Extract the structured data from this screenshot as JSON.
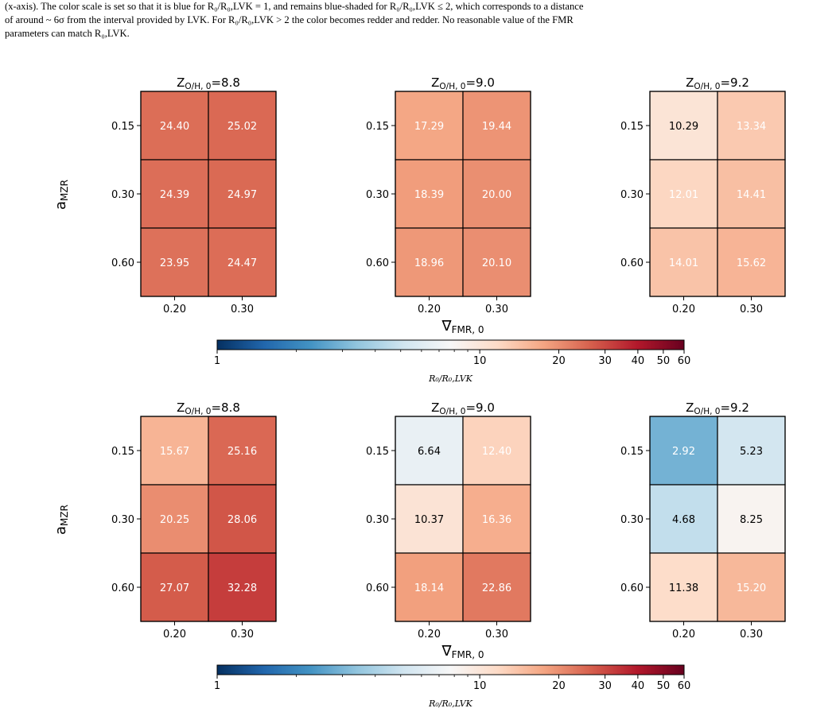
{
  "caption": {
    "line1": "(x-axis). The color scale is set so that it is blue for R₀/R₀,LVK = 1, and remains blue-shaded for R₀/R₀,LVK ≤ 2, which corresponds to a distance",
    "line2": "of around ~ 6σ from the interval provided by LVK. For R₀/R₀,LVK > 2 the color becomes redder and redder. No reasonable value of the FMR",
    "line3": "parameters can match R₀,LVK."
  },
  "chart_data": [
    {
      "type": "heatmap",
      "panel": "top",
      "x_categories": [
        "0.20",
        "0.30"
      ],
      "y_categories": [
        "0.15",
        "0.30",
        "0.60"
      ],
      "ylabel": "a_MZR",
      "xlabel": "∇_FMR,0",
      "subplots": [
        {
          "title": "Z_O/H,0=8.8",
          "title_base": "Z",
          "title_sub": "O/H, 0",
          "title_val": "=8.8",
          "values": [
            [
              "24.40",
              "25.02"
            ],
            [
              "24.39",
              "24.97"
            ],
            [
              "23.95",
              "24.47"
            ]
          ]
        },
        {
          "title": "Z_O/H,0=9.0",
          "title_base": "Z",
          "title_sub": "O/H, 0",
          "title_val": "=9.0",
          "values": [
            [
              "17.29",
              "19.44"
            ],
            [
              "18.39",
              "20.00"
            ],
            [
              "18.96",
              "20.10"
            ]
          ]
        },
        {
          "title": "Z_O/H,0=9.2",
          "title_base": "Z",
          "title_sub": "O/H, 0",
          "title_val": "=9.2",
          "values": [
            [
              "10.29",
              "13.34"
            ],
            [
              "12.01",
              "14.41"
            ],
            [
              "14.01",
              "15.62"
            ]
          ]
        }
      ],
      "colorbar": {
        "scale": "log",
        "range": [
          1,
          60
        ],
        "ticks": [
          "1",
          "10",
          "20",
          "30",
          "40",
          "50",
          "60"
        ],
        "label": "R₀/R₀,LVK",
        "colormap": "RdBu_r"
      }
    },
    {
      "type": "heatmap",
      "panel": "bottom",
      "x_categories": [
        "0.20",
        "0.30"
      ],
      "y_categories": [
        "0.15",
        "0.30",
        "0.60"
      ],
      "ylabel": "a_MZR",
      "xlabel": "∇_FMR,0",
      "subplots": [
        {
          "title": "Z_O/H,0=8.8",
          "title_base": "Z",
          "title_sub": "O/H, 0",
          "title_val": "=8.8",
          "values": [
            [
              "15.67",
              "25.16"
            ],
            [
              "20.25",
              "28.06"
            ],
            [
              "27.07",
              "32.28"
            ]
          ]
        },
        {
          "title": "Z_O/H,0=9.0",
          "title_base": "Z",
          "title_sub": "O/H, 0",
          "title_val": "=9.0",
          "values": [
            [
              "6.64",
              "12.40"
            ],
            [
              "10.37",
              "16.36"
            ],
            [
              "18.14",
              "22.86"
            ]
          ]
        },
        {
          "title": "Z_O/H,0=9.2",
          "title_base": "Z",
          "title_sub": "O/H, 0",
          "title_val": "=9.2",
          "values": [
            [
              "2.92",
              "5.23"
            ],
            [
              "4.68",
              "8.25"
            ],
            [
              "11.38",
              "15.20"
            ]
          ]
        }
      ],
      "colorbar": {
        "scale": "log",
        "range": [
          1,
          60
        ],
        "ticks": [
          "1",
          "10",
          "20",
          "30",
          "40",
          "50",
          "60"
        ],
        "label": "R₀/R₀,LVK",
        "colormap": "RdBu_r"
      }
    }
  ]
}
